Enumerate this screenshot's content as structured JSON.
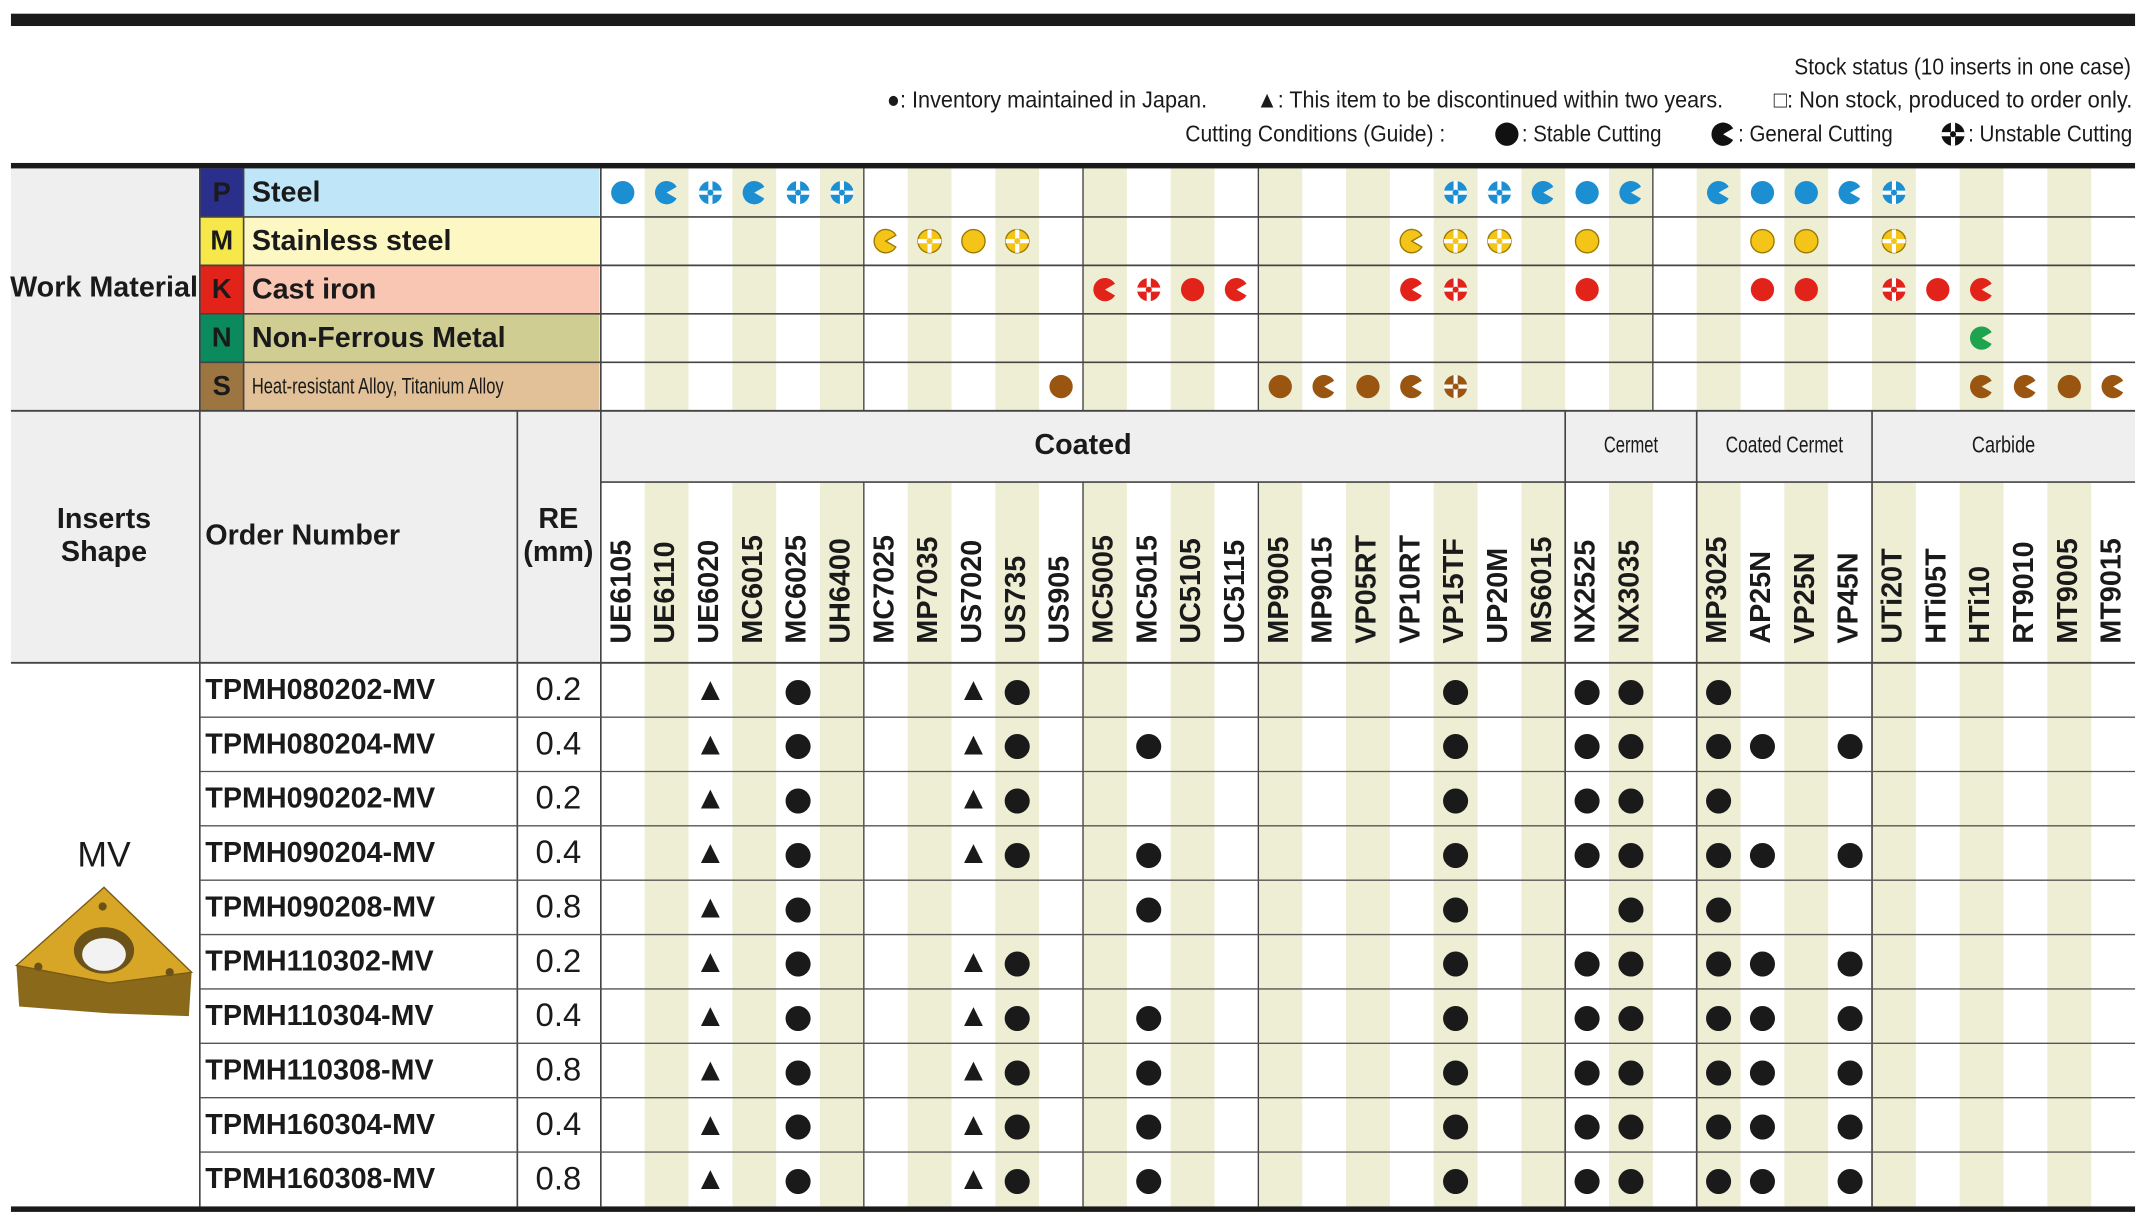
{
  "legend": {
    "title": "Stock status (10 inserts in one case)",
    "stock": [
      "●: Inventory maintained in Japan.",
      "▲: This item to be discontinued within two years.",
      "□: Non stock, produced to order only."
    ],
    "cutting_label": "Cutting Conditions (Guide) :",
    "cutting": [
      ": Stable Cutting",
      ": General Cutting",
      ": Unstable Cutting"
    ]
  },
  "work_material": {
    "label": "Work Material",
    "rows": [
      {
        "code": "P",
        "name": "Steel",
        "code_bg": "#2b2f8c",
        "code_fg": "#ffffff",
        "name_bg": "#bfe6f8",
        "color": "#1b8fd2",
        "cells": {
          "0": "stable",
          "1": "general",
          "2": "unstable",
          "3": "general",
          "4": "unstable",
          "5": "unstable",
          "19": "unstable",
          "20": "unstable",
          "21": "general",
          "22": "stable",
          "23": "general",
          "25": "general",
          "26": "stable",
          "27": "stable",
          "28": "general",
          "29": "unstable"
        }
      },
      {
        "code": "M",
        "name": "Stainless steel",
        "code_bg": "#f6e84a",
        "code_fg": "#111111",
        "name_bg": "#fdf7c3",
        "color": "#f4c419",
        "cells": {
          "6": "general",
          "7": "unstable",
          "8": "stable",
          "9": "unstable",
          "18": "general",
          "19": "unstable",
          "20": "unstable",
          "22": "stable",
          "26": "stable",
          "27": "stable",
          "29": "unstable"
        }
      },
      {
        "code": "K",
        "name": "Cast iron",
        "code_bg": "#e2231a",
        "code_fg": "#ffffff",
        "name_bg": "#f9c6b3",
        "color": "#e2231a",
        "cells": {
          "11": "general",
          "12": "unstable",
          "13": "stable",
          "14": "general",
          "18": "general",
          "19": "unstable",
          "22": "stable",
          "26": "stable",
          "27": "stable",
          "29": "unstable",
          "30": "stable",
          "31": "general"
        }
      },
      {
        "code": "N",
        "name": "Non-Ferrous Metal",
        "code_bg": "#0b8a5e",
        "code_fg": "#ffffff",
        "name_bg": "#d0cd93",
        "color": "#1ea34f",
        "cells": {
          "31": "general"
        }
      },
      {
        "code": "S",
        "name": "Heat-resistant Alloy, Titanium Alloy",
        "code_bg": "#9c7540",
        "code_fg": "#ffffff",
        "name_bg": "#e2c198",
        "color": "#9a5610",
        "cells": {
          "10": "stable",
          "15": "stable",
          "16": "general",
          "17": "stable",
          "18": "general",
          "19": "unstable",
          "31": "general",
          "32": "general",
          "33": "stable",
          "34": "general"
        }
      }
    ]
  },
  "header": {
    "shape": [
      "Inserts",
      "Shape"
    ],
    "order": "Order Number",
    "re": [
      "RE",
      "(mm)"
    ]
  },
  "grade_groups": [
    {
      "label": "Coated",
      "grades": [
        "UE6105",
        "UE6110",
        "UE6020",
        "MC6015",
        "MC6025",
        "UH6400",
        "MC7025",
        "MP7035",
        "US7020",
        "US735",
        "US905",
        "MC5005",
        "MC5015",
        "UC5105",
        "UC5115",
        "MP9005",
        "MP9015",
        "VP05RT",
        "VP10RT",
        "VP15TF",
        "UP20M",
        "MS6015"
      ]
    },
    {
      "label": "Cermet",
      "grades": [
        "NX2525",
        "NX3035",
        null
      ]
    },
    {
      "label": "Coated Cermet",
      "grades": [
        "MP3025",
        "AP25N",
        "VP25N",
        "VP45N"
      ]
    },
    {
      "label": "Carbide",
      "grades": [
        "UTi20T",
        "HTi05T",
        "HTi10",
        "RT9010",
        "MT9005",
        "MT9015"
      ]
    }
  ],
  "shape": "MV",
  "rows": [
    {
      "order": "TPMH080202-MV",
      "re": 0.2,
      "stock": {
        "2": "▲",
        "4": "●",
        "8": "▲",
        "9": "●",
        "19": "●",
        "22": "●",
        "23": "●",
        "25": "●"
      }
    },
    {
      "order": "TPMH080204-MV",
      "re": 0.4,
      "stock": {
        "2": "▲",
        "4": "●",
        "8": "▲",
        "9": "●",
        "12": "●",
        "19": "●",
        "22": "●",
        "23": "●",
        "25": "●",
        "26": "●",
        "28": "●"
      }
    },
    {
      "order": "TPMH090202-MV",
      "re": 0.2,
      "stock": {
        "2": "▲",
        "4": "●",
        "8": "▲",
        "9": "●",
        "19": "●",
        "22": "●",
        "23": "●",
        "25": "●"
      }
    },
    {
      "order": "TPMH090204-MV",
      "re": 0.4,
      "stock": {
        "2": "▲",
        "4": "●",
        "8": "▲",
        "9": "●",
        "12": "●",
        "19": "●",
        "22": "●",
        "23": "●",
        "25": "●",
        "26": "●",
        "28": "●"
      }
    },
    {
      "order": "TPMH090208-MV",
      "re": 0.8,
      "stock": {
        "2": "▲",
        "4": "●",
        "12": "●",
        "19": "●",
        "23": "●",
        "25": "●"
      }
    },
    {
      "order": "TPMH110302-MV",
      "re": 0.2,
      "stock": {
        "2": "▲",
        "4": "●",
        "8": "▲",
        "9": "●",
        "19": "●",
        "22": "●",
        "23": "●",
        "25": "●",
        "26": "●",
        "28": "●"
      }
    },
    {
      "order": "TPMH110304-MV",
      "re": 0.4,
      "stock": {
        "2": "▲",
        "4": "●",
        "8": "▲",
        "9": "●",
        "12": "●",
        "19": "●",
        "22": "●",
        "23": "●",
        "25": "●",
        "26": "●",
        "28": "●"
      }
    },
    {
      "order": "TPMH110308-MV",
      "re": 0.8,
      "stock": {
        "2": "▲",
        "4": "●",
        "8": "▲",
        "9": "●",
        "12": "●",
        "19": "●",
        "22": "●",
        "23": "●",
        "25": "●",
        "26": "●",
        "28": "●"
      }
    },
    {
      "order": "TPMH160304-MV",
      "re": 0.4,
      "stock": {
        "2": "▲",
        "4": "●",
        "8": "▲",
        "9": "●",
        "12": "●",
        "19": "●",
        "22": "●",
        "23": "●",
        "25": "●",
        "26": "●",
        "28": "●"
      }
    },
    {
      "order": "TPMH160308-MV",
      "re": 0.8,
      "stock": {
        "2": "▲",
        "4": "●",
        "8": "▲",
        "9": "●",
        "12": "●",
        "19": "●",
        "22": "●",
        "23": "●",
        "25": "●",
        "26": "●",
        "28": "●"
      }
    }
  ]
}
